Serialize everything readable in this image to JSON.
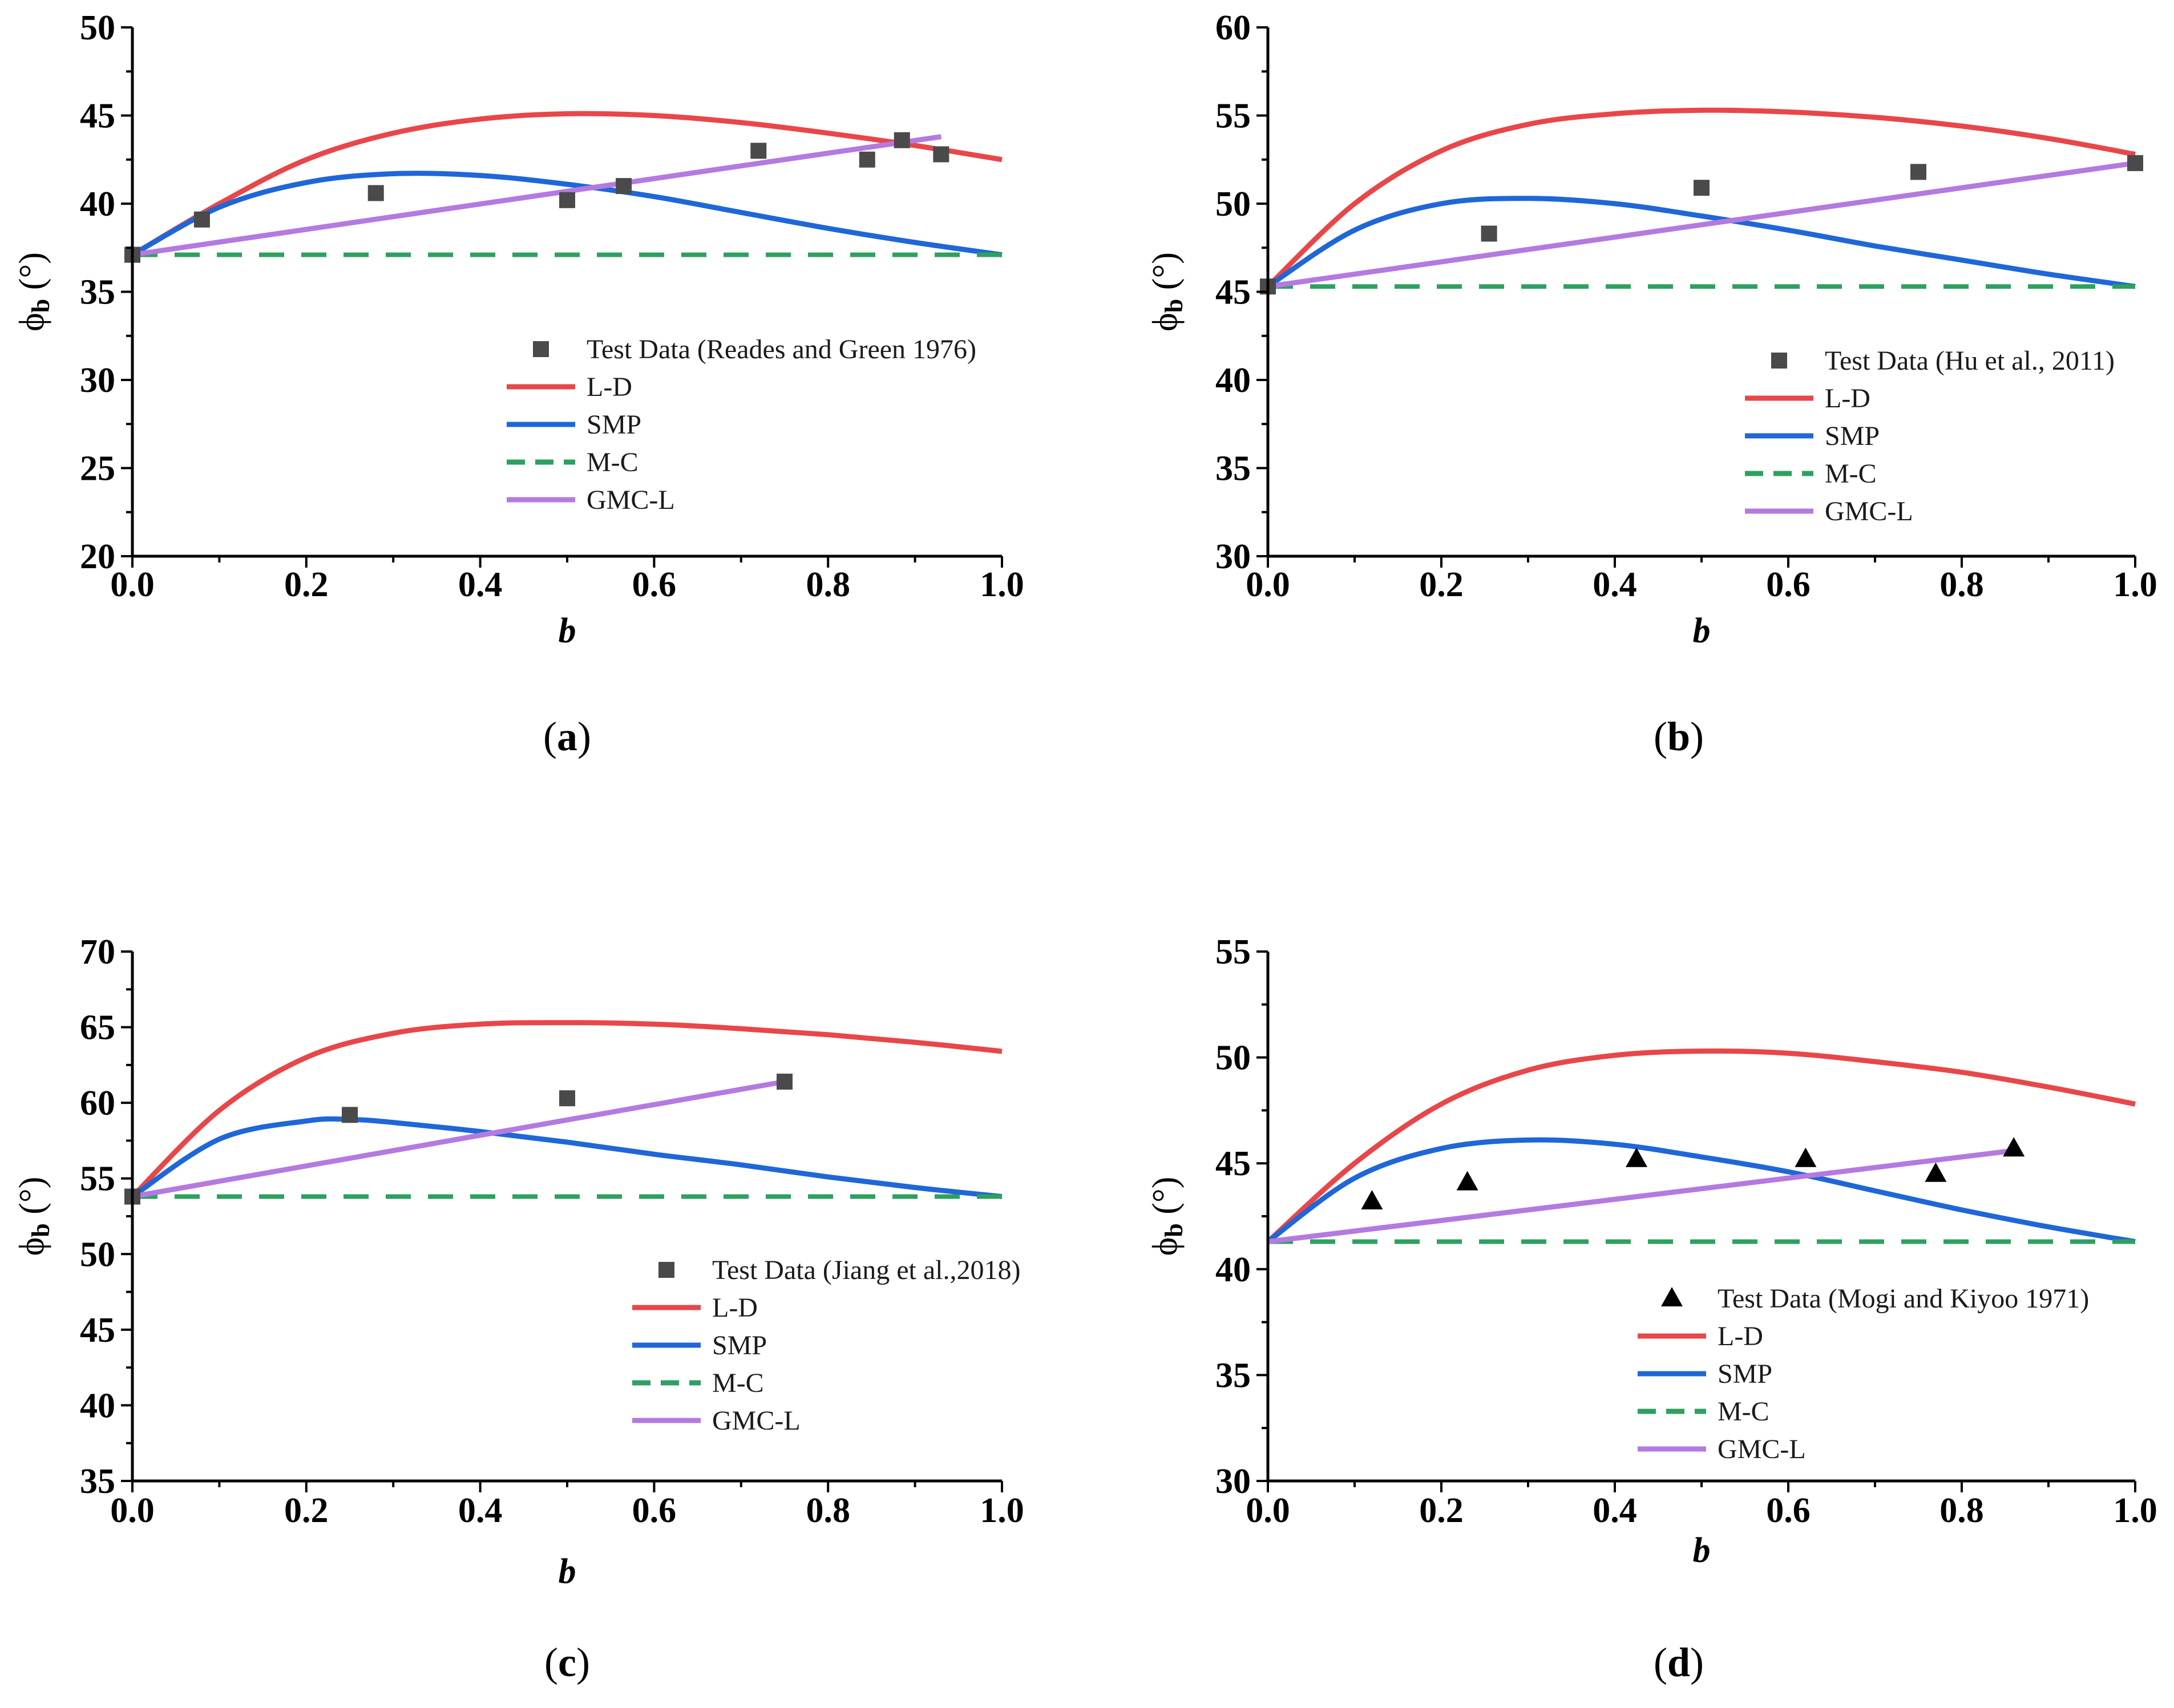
{
  "colors": {
    "L-D": "#e8474a",
    "SMP": "#1f67d8",
    "M-C": "#2ea060",
    "GMC-L": "#b47ae0",
    "test": "#4a4a4a",
    "axis": "#000000"
  },
  "chart_data": [
    {
      "type": "line",
      "caption": {
        "open": "(",
        "letter": "a",
        "close": ")"
      },
      "xlabel": "b",
      "ylabel": {
        "main": "ϕ",
        "sub": "b",
        "unit": " (°)"
      },
      "xlim": [
        0,
        1
      ],
      "ylim": [
        20,
        50
      ],
      "xticks": [
        0.0,
        0.2,
        0.4,
        0.6,
        0.8,
        1.0
      ],
      "xtick_labels": [
        "0.0",
        "0.2",
        "0.4",
        "0.6",
        "0.8",
        "1.0"
      ],
      "yticks": [
        20,
        25,
        30,
        35,
        40,
        45,
        50
      ],
      "ytick_labels": [
        "20",
        "25",
        "30",
        "35",
        "40",
        "45",
        "50"
      ],
      "test_data": {
        "name": "Test Data (Reades and Green 1976)",
        "marker": "square",
        "x": [
          0.0,
          0.08,
          0.28,
          0.5,
          0.565,
          0.72,
          0.845,
          0.885,
          0.93
        ],
        "y": [
          37.1,
          39.1,
          40.6,
          40.2,
          41.0,
          43.0,
          42.5,
          43.6,
          42.8
        ]
      },
      "series": [
        {
          "name": "L-D",
          "style": "solid",
          "x": [
            0,
            0.1,
            0.2,
            0.3,
            0.4,
            0.5,
            0.6,
            0.7,
            0.8,
            0.9,
            1.0
          ],
          "y": [
            37.1,
            40.0,
            42.5,
            44.0,
            44.8,
            45.1,
            45.0,
            44.6,
            44.0,
            43.3,
            42.5
          ]
        },
        {
          "name": "SMP",
          "style": "solid",
          "x": [
            0,
            0.1,
            0.2,
            0.3,
            0.4,
            0.5,
            0.6,
            0.7,
            0.8,
            0.9,
            1.0
          ],
          "y": [
            37.1,
            39.8,
            41.2,
            41.7,
            41.6,
            41.1,
            40.4,
            39.5,
            38.6,
            37.8,
            37.1
          ]
        },
        {
          "name": "M-C",
          "style": "dashed",
          "x": [
            0,
            1.0
          ],
          "y": [
            37.1,
            37.1
          ]
        },
        {
          "name": "GMC-L",
          "style": "solid",
          "x": [
            0,
            0.93
          ],
          "y": [
            37.1,
            43.8
          ]
        }
      ],
      "legend": {
        "position": "center-right"
      }
    },
    {
      "type": "line",
      "caption": {
        "open": "(",
        "letter": "b",
        "close": ")"
      },
      "xlabel": "b",
      "ylabel": {
        "main": "ϕ",
        "sub": "b",
        "unit": " (°)"
      },
      "xlim": [
        0,
        1
      ],
      "ylim": [
        30,
        60
      ],
      "xticks": [
        0.0,
        0.2,
        0.4,
        0.6,
        0.8,
        1.0
      ],
      "xtick_labels": [
        "0.0",
        "0.2",
        "0.4",
        "0.6",
        "0.8",
        "1.0"
      ],
      "yticks": [
        30,
        35,
        40,
        45,
        50,
        55,
        60
      ],
      "ytick_labels": [
        "30",
        "35",
        "40",
        "45",
        "50",
        "55",
        "60"
      ],
      "test_data": {
        "name": "Test Data (Hu et al., 2011)",
        "marker": "square",
        "x": [
          0.0,
          0.255,
          0.5,
          0.75,
          1.0
        ],
        "y": [
          45.3,
          48.3,
          50.9,
          51.8,
          52.3
        ]
      },
      "series": [
        {
          "name": "L-D",
          "style": "solid",
          "x": [
            0,
            0.1,
            0.2,
            0.3,
            0.4,
            0.5,
            0.6,
            0.7,
            0.8,
            0.9,
            1.0
          ],
          "y": [
            45.3,
            50.0,
            53.0,
            54.5,
            55.1,
            55.3,
            55.2,
            54.9,
            54.4,
            53.7,
            52.8
          ]
        },
        {
          "name": "SMP",
          "style": "solid",
          "x": [
            0,
            0.1,
            0.2,
            0.3,
            0.4,
            0.5,
            0.6,
            0.7,
            0.8,
            0.9,
            1.0
          ],
          "y": [
            45.3,
            48.5,
            50.0,
            50.3,
            50.0,
            49.3,
            48.5,
            47.6,
            46.8,
            46.0,
            45.3
          ]
        },
        {
          "name": "M-C",
          "style": "dashed",
          "x": [
            0,
            1.0
          ],
          "y": [
            45.3,
            45.3
          ]
        },
        {
          "name": "GMC-L",
          "style": "solid",
          "x": [
            0,
            1.0
          ],
          "y": [
            45.3,
            52.3
          ]
        }
      ],
      "legend": {
        "position": "center-right"
      }
    },
    {
      "type": "line",
      "caption": {
        "open": "(",
        "letter": "c",
        "close": ")"
      },
      "xlabel": "b",
      "ylabel": {
        "main": "ϕ",
        "sub": "b",
        "unit": " (°)"
      },
      "xlim": [
        0,
        1
      ],
      "ylim": [
        35,
        70
      ],
      "xticks": [
        0.0,
        0.2,
        0.4,
        0.6,
        0.8,
        1.0
      ],
      "xtick_labels": [
        "0.0",
        "0.2",
        "0.4",
        "0.6",
        "0.8",
        "1.0"
      ],
      "yticks": [
        35,
        40,
        45,
        50,
        55,
        60,
        65,
        70
      ],
      "ytick_labels": [
        "35",
        "40",
        "45",
        "50",
        "55",
        "60",
        "65",
        "70"
      ],
      "test_data": {
        "name": "Test Data (Jiang et al.,2018)",
        "marker": "square",
        "x": [
          0.0,
          0.25,
          0.5,
          0.75
        ],
        "y": [
          53.8,
          59.2,
          60.3,
          61.4
        ]
      },
      "series": [
        {
          "name": "L-D",
          "style": "solid",
          "x": [
            0,
            0.1,
            0.2,
            0.3,
            0.4,
            0.5,
            0.6,
            0.7,
            0.8,
            0.9,
            1.0
          ],
          "y": [
            53.8,
            59.5,
            63.0,
            64.6,
            65.2,
            65.3,
            65.2,
            64.9,
            64.5,
            64.0,
            63.4
          ]
        },
        {
          "name": "SMP",
          "style": "solid",
          "x": [
            0,
            0.1,
            0.2,
            0.25,
            0.3,
            0.4,
            0.5,
            0.6,
            0.7,
            0.8,
            0.9,
            1.0
          ],
          "y": [
            53.8,
            57.6,
            58.8,
            58.9,
            58.7,
            58.1,
            57.4,
            56.6,
            55.9,
            55.1,
            54.4,
            53.8
          ]
        },
        {
          "name": "M-C",
          "style": "dashed",
          "x": [
            0,
            1.0
          ],
          "y": [
            53.8,
            53.8
          ]
        },
        {
          "name": "GMC-L",
          "style": "solid",
          "x": [
            0,
            0.75
          ],
          "y": [
            53.8,
            61.4
          ]
        }
      ],
      "legend": {
        "position": "bottom-right"
      }
    },
    {
      "type": "line",
      "caption": {
        "open": "(",
        "letter": "d",
        "close": ")"
      },
      "xlabel": "b",
      "ylabel": {
        "main": "ϕ",
        "sub": "b",
        "unit": " (°)"
      },
      "xlim": [
        0,
        1
      ],
      "ylim": [
        30,
        55
      ],
      "xticks": [
        0.0,
        0.2,
        0.4,
        0.6,
        0.8,
        1.0
      ],
      "xtick_labels": [
        "0.0",
        "0.2",
        "0.4",
        "0.6",
        "0.8",
        "1.0"
      ],
      "yticks": [
        30,
        35,
        40,
        45,
        50,
        55
      ],
      "ytick_labels": [
        "30",
        "35",
        "40",
        "45",
        "50",
        "55"
      ],
      "test_data": {
        "name": "Test Data (Mogi and Kiyoo 1971)",
        "marker": "triangle",
        "x": [
          0.12,
          0.23,
          0.425,
          0.62,
          0.77,
          0.86
        ],
        "y": [
          43.2,
          44.1,
          45.2,
          45.2,
          44.5,
          45.7
        ]
      },
      "series": [
        {
          "name": "L-D",
          "style": "solid",
          "x": [
            0,
            0.1,
            0.2,
            0.3,
            0.4,
            0.5,
            0.6,
            0.7,
            0.8,
            0.9,
            1.0
          ],
          "y": [
            41.3,
            45.0,
            47.8,
            49.4,
            50.1,
            50.3,
            50.2,
            49.8,
            49.3,
            48.6,
            47.8
          ]
        },
        {
          "name": "SMP",
          "style": "solid",
          "x": [
            0,
            0.1,
            0.2,
            0.3,
            0.4,
            0.5,
            0.6,
            0.7,
            0.8,
            0.9,
            1.0
          ],
          "y": [
            41.3,
            44.3,
            45.7,
            46.1,
            45.9,
            45.3,
            44.6,
            43.7,
            42.8,
            42.0,
            41.3
          ]
        },
        {
          "name": "M-C",
          "style": "dashed",
          "x": [
            0,
            1.0
          ],
          "y": [
            41.3,
            41.3
          ]
        },
        {
          "name": "GMC-L",
          "style": "solid",
          "x": [
            0,
            0.86
          ],
          "y": [
            41.3,
            45.6
          ]
        }
      ],
      "legend": {
        "position": "bottom-right"
      }
    }
  ]
}
